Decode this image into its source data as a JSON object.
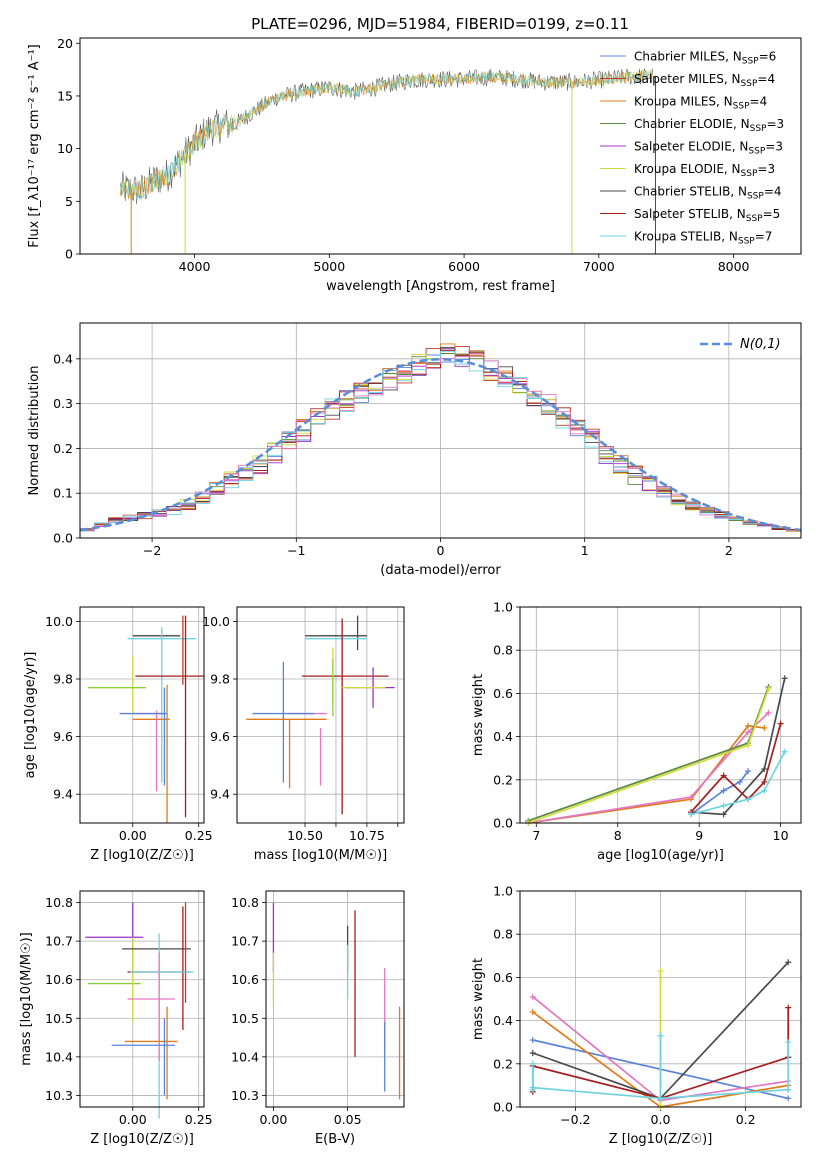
{
  "title": "PLATE=0296, MJD=51984, FIBERID=0199, z=0.11",
  "colors": {
    "chabrier_miles": "#5b84d8",
    "salpeter_miles": "#c0392b",
    "kroupa_miles": "#e07b1a",
    "chabrier_elodie": "#5a8a3c",
    "salpeter_elodie": "#9b30c9",
    "kroupa_elodie": "#d4d93a",
    "chabrier_stelib": "#4a4a4a",
    "salpeter_stelib": "#a51d1d",
    "kroupa_stelib": "#6fd3e0",
    "pink": "#e377c2",
    "green_light": "#8ccf3a",
    "grid": "#b0b0b0",
    "gauss": "#5b8ed8"
  },
  "chart_data": [
    {
      "id": "spectrum",
      "type": "line",
      "xlabel": "wavelength [Angstrom, rest frame]",
      "ylabel": "Flux [f_λ10⁻¹⁷ erg cm⁻² s⁻¹ A⁻¹]",
      "xlim": [
        3150,
        8500
      ],
      "ylim": [
        0,
        20.5
      ],
      "xticks": [
        4000,
        5000,
        6000,
        7000,
        8000
      ],
      "yticks": [
        0,
        5,
        10,
        15,
        20
      ],
      "continuum": {
        "x": [
          3450,
          3600,
          3700,
          3800,
          3900,
          4000,
          4100,
          4200,
          4300,
          4400,
          4600,
          4800,
          5000,
          5200,
          5400,
          5600,
          5800,
          6000,
          6200,
          6400,
          6600,
          6800,
          7000,
          7200,
          7400
        ],
        "y": [
          6.2,
          6.0,
          7.0,
          7.5,
          9.0,
          10.5,
          11.8,
          12.2,
          12.3,
          13.2,
          14.8,
          15.4,
          15.8,
          15.4,
          16.0,
          16.5,
          16.6,
          16.6,
          16.8,
          16.6,
          16.3,
          16.3,
          16.5,
          16.8,
          16.9
        ]
      },
      "legend": [
        {
          "label": "Chabrier MILES, N",
          "sub": "SSP",
          "val": "=6",
          "color": "chabrier_miles"
        },
        {
          "label": "Salpeter MILES, N",
          "sub": "SSP",
          "val": "=4",
          "color": "salpeter_miles"
        },
        {
          "label": "Kroupa MILES, N",
          "sub": "SSP",
          "val": "=4",
          "color": "kroupa_miles"
        },
        {
          "label": "Chabrier ELODIE, N",
          "sub": "SSP",
          "val": "=3",
          "color": "chabrier_elodie"
        },
        {
          "label": "Salpeter ELODIE, N",
          "sub": "SSP",
          "val": "=3",
          "color": "salpeter_elodie"
        },
        {
          "label": "Kroupa ELODIE, N",
          "sub": "SSP",
          "val": "=3",
          "color": "kroupa_elodie"
        },
        {
          "label": "Chabrier STELIB, N",
          "sub": "SSP",
          "val": "=4",
          "color": "chabrier_stelib"
        },
        {
          "label": "Salpeter STELIB, N",
          "sub": "SSP",
          "val": "=5",
          "color": "salpeter_stelib"
        },
        {
          "label": "Kroupa STELIB, N",
          "sub": "SSP",
          "val": "=7",
          "color": "kroupa_stelib"
        }
      ],
      "spikes": [
        {
          "x": 3530,
          "y": 0,
          "color": "kroupa_miles"
        },
        {
          "x": 3930,
          "y": 0,
          "color": "kroupa_elodie"
        },
        {
          "x": 6800,
          "y": 0,
          "color": "kroupa_elodie"
        },
        {
          "x": 7420,
          "y": 0,
          "color": "salpeter_stelib"
        }
      ]
    },
    {
      "id": "residual-histogram",
      "type": "histogram",
      "xlabel": "(data-model)/error",
      "ylabel": "Normed distribution",
      "xlim": [
        -2.5,
        2.5
      ],
      "ylim": [
        0,
        0.48
      ],
      "xticks": [
        -2,
        -1,
        0,
        1,
        2
      ],
      "yticks": [
        0.0,
        0.1,
        0.2,
        0.3,
        0.4
      ],
      "legend": "N(0,1)",
      "bin_width": 0.1,
      "bin_start": -2.5,
      "values": [
        0.018,
        0.03,
        0.04,
        0.045,
        0.05,
        0.055,
        0.062,
        0.075,
        0.09,
        0.11,
        0.13,
        0.145,
        0.165,
        0.19,
        0.215,
        0.24,
        0.265,
        0.29,
        0.305,
        0.325,
        0.34,
        0.355,
        0.37,
        0.385,
        0.4,
        0.41,
        0.405,
        0.395,
        0.375,
        0.36,
        0.34,
        0.32,
        0.3,
        0.27,
        0.245,
        0.22,
        0.19,
        0.165,
        0.14,
        0.12,
        0.1,
        0.085,
        0.07,
        0.06,
        0.052,
        0.045,
        0.035,
        0.028,
        0.022,
        0.017
      ]
    },
    {
      "id": "age-vs-Z",
      "type": "errorbar",
      "xlabel": "Z [log10(Z/Z☉)]",
      "ylabel": "age [log10(age/yr)]",
      "xlim": [
        -0.2,
        0.27
      ],
      "ylim": [
        9.3,
        10.05
      ],
      "xticks": [
        0.0,
        0.25
      ],
      "yticks": [
        9.4,
        9.6,
        9.8,
        10.0
      ],
      "points": [
        {
          "x": -0.06,
          "y": 9.77,
          "xerr": 0.11,
          "yerr": 0.0,
          "color": "kroupa_elodie"
        },
        {
          "x": 0.0,
          "y": 9.78,
          "xerr": 0.0,
          "yerr": 0.1,
          "color": "kroupa_elodie"
        },
        {
          "x": -0.06,
          "y": 9.77,
          "xerr": 0.11,
          "yerr": 0.0,
          "color": "green_light"
        },
        {
          "x": 0.09,
          "y": 9.95,
          "xerr": 0.09,
          "yerr": 0.0,
          "color": "chabrier_stelib"
        },
        {
          "x": 0.11,
          "y": 9.94,
          "xerr": 0.13,
          "yerr": 0.0,
          "color": "kroupa_stelib"
        },
        {
          "x": 0.11,
          "y": 9.71,
          "xerr": 0.0,
          "yerr": 0.27,
          "color": "kroupa_stelib"
        },
        {
          "x": 0.14,
          "y": 9.81,
          "xerr": 0.13,
          "yerr": 0.0,
          "color": "salpeter_stelib"
        },
        {
          "x": 0.2,
          "y": 9.67,
          "xerr": 0.0,
          "yerr": 0.35,
          "color": "salpeter_stelib"
        },
        {
          "x": 0.19,
          "y": 9.9,
          "xerr": 0.0,
          "yerr": 0.12,
          "color": "salpeter_miles"
        },
        {
          "x": 0.07,
          "y": 9.66,
          "xerr": 0.07,
          "yerr": 0.0,
          "color": "kroupa_miles"
        },
        {
          "x": 0.13,
          "y": 9.54,
          "xerr": 0.0,
          "yerr": 0.24,
          "color": "kroupa_miles"
        },
        {
          "x": 0.06,
          "y": 9.68,
          "xerr": 0.06,
          "yerr": 0.0,
          "color": "pink"
        },
        {
          "x": 0.09,
          "y": 9.55,
          "xerr": 0.0,
          "yerr": 0.14,
          "color": "pink"
        },
        {
          "x": 0.04,
          "y": 9.68,
          "xerr": 0.09,
          "yerr": 0.0,
          "color": "chabrier_miles"
        },
        {
          "x": 0.12,
          "y": 9.6,
          "xerr": 0.0,
          "yerr": 0.17,
          "color": "chabrier_miles"
        }
      ]
    },
    {
      "id": "age-vs-mass",
      "type": "errorbar",
      "xlabel": "mass [log10(M/M☉)]",
      "ylabel": "",
      "xlim": [
        10.28,
        10.82
      ],
      "ylim": [
        9.3,
        10.05
      ],
      "xticks": [
        10.5,
        10.6,
        10.7,
        10.8
      ],
      "xticklabels": [
        "10.50",
        "",
        "10.75",
        ""
      ],
      "yticks": [
        9.4,
        9.6,
        9.8,
        10.0
      ],
      "points": [
        {
          "x": 10.6,
          "y": 9.95,
          "xerr": 0.1,
          "yerr": 0.0,
          "color": "chabrier_stelib"
        },
        {
          "x": 10.67,
          "y": 9.96,
          "xerr": 0.0,
          "yerr": 0.06,
          "color": "chabrier_stelib"
        },
        {
          "x": 10.6,
          "y": 9.94,
          "xerr": 0.1,
          "yerr": 0.0,
          "color": "kroupa_stelib"
        },
        {
          "x": 10.63,
          "y": 9.81,
          "xerr": 0.14,
          "yerr": 0.0,
          "color": "salpeter_stelib"
        },
        {
          "x": 10.62,
          "y": 9.67,
          "xerr": 0.0,
          "yerr": 0.34,
          "color": "salpeter_stelib"
        },
        {
          "x": 10.71,
          "y": 9.77,
          "xerr": 0.08,
          "yerr": 0.0,
          "color": "salpeter_elodie"
        },
        {
          "x": 10.72,
          "y": 9.77,
          "xerr": 0.0,
          "yerr": 0.07,
          "color": "salpeter_elodie"
        },
        {
          "x": 10.69,
          "y": 9.77,
          "xerr": 0.07,
          "yerr": 0.0,
          "color": "kroupa_elodie"
        },
        {
          "x": 10.59,
          "y": 9.81,
          "xerr": 0.0,
          "yerr": 0.1,
          "color": "kroupa_elodie"
        },
        {
          "x": 10.59,
          "y": 9.77,
          "xerr": 0.0,
          "yerr": 0.1,
          "color": "green_light"
        },
        {
          "x": 10.44,
          "y": 9.66,
          "xerr": 0.13,
          "yerr": 0.0,
          "color": "kroupa_miles"
        },
        {
          "x": 10.45,
          "y": 9.54,
          "xerr": 0.0,
          "yerr": 0.12,
          "color": "kroupa_miles"
        },
        {
          "x": 10.51,
          "y": 9.68,
          "xerr": 0.06,
          "yerr": 0.0,
          "color": "pink"
        },
        {
          "x": 10.55,
          "y": 9.53,
          "xerr": 0.0,
          "yerr": 0.1,
          "color": "pink"
        },
        {
          "x": 10.43,
          "y": 9.68,
          "xerr": 0.1,
          "yerr": 0.0,
          "color": "chabrier_miles"
        },
        {
          "x": 10.43,
          "y": 9.65,
          "xerr": 0.0,
          "yerr": 0.21,
          "color": "chabrier_miles"
        }
      ]
    },
    {
      "id": "mass-weight-vs-age",
      "type": "line",
      "xlabel": "age [log10(age/yr)]",
      "ylabel": "mass weight",
      "xlim": [
        6.8,
        10.25
      ],
      "ylim": [
        0,
        1.0
      ],
      "xticks": [
        7,
        8,
        9,
        10
      ],
      "yticks": [
        0.0,
        0.2,
        0.4,
        0.6,
        0.8,
        1.0
      ],
      "series": [
        {
          "color": "chabrier_miles",
          "x": [
            8.9,
            9.3,
            9.5,
            9.6
          ],
          "y": [
            0.04,
            0.15,
            0.19,
            0.24
          ]
        },
        {
          "color": "kroupa_miles",
          "x": [
            6.9,
            8.9,
            9.6,
            9.8
          ],
          "y": [
            0.0,
            0.11,
            0.45,
            0.44
          ]
        },
        {
          "color": "pink",
          "x": [
            6.9,
            8.9,
            9.6,
            9.85
          ],
          "y": [
            0.0,
            0.12,
            0.42,
            0.51
          ]
        },
        {
          "color": "chabrier_elodie",
          "x": [
            6.9,
            9.6,
            9.85
          ],
          "y": [
            0.01,
            0.37,
            0.63
          ]
        },
        {
          "color": "kroupa_elodie",
          "x": [
            6.9,
            9.6,
            9.85
          ],
          "y": [
            0.0,
            0.36,
            0.62
          ]
        },
        {
          "color": "chabrier_stelib",
          "x": [
            8.9,
            9.3,
            9.8,
            10.05
          ],
          "y": [
            0.05,
            0.04,
            0.25,
            0.67
          ]
        },
        {
          "color": "salpeter_stelib",
          "x": [
            8.9,
            9.3,
            9.6,
            9.8,
            10.0
          ],
          "y": [
            0.05,
            0.22,
            0.11,
            0.19,
            0.46
          ]
        },
        {
          "color": "kroupa_stelib",
          "x": [
            8.9,
            9.3,
            9.6,
            9.8,
            10.05
          ],
          "y": [
            0.04,
            0.08,
            0.11,
            0.15,
            0.33
          ]
        }
      ]
    },
    {
      "id": "mass-vs-Z",
      "type": "errorbar",
      "xlabel": "Z [log10(Z/Z☉)]",
      "ylabel": "mass [log10(M/M☉)]",
      "xlim": [
        -0.2,
        0.27
      ],
      "ylim": [
        10.27,
        10.83
      ],
      "xticks": [
        0.0,
        0.25
      ],
      "yticks": [
        10.3,
        10.4,
        10.5,
        10.6,
        10.7,
        10.8
      ],
      "points": [
        {
          "x": -0.07,
          "y": 10.71,
          "xerr": 0.11,
          "yerr": 0.0,
          "color": "salpeter_elodie"
        },
        {
          "x": 0.0,
          "y": 10.71,
          "xerr": 0.0,
          "yerr": 0.09,
          "color": "salpeter_elodie"
        },
        {
          "x": -0.07,
          "y": 10.59,
          "xerr": 0.1,
          "yerr": 0.0,
          "color": "green_light"
        },
        {
          "x": 0.0,
          "y": 10.6,
          "xerr": 0.0,
          "yerr": 0.11,
          "color": "kroupa_elodie"
        },
        {
          "x": 0.09,
          "y": 10.68,
          "xerr": 0.13,
          "yerr": 0.0,
          "color": "chabrier_stelib"
        },
        {
          "x": 0.1,
          "y": 10.62,
          "xerr": 0.12,
          "yerr": 0.0,
          "color": "salpeter_stelib"
        },
        {
          "x": 0.19,
          "y": 10.63,
          "xerr": 0.0,
          "yerr": 0.16,
          "color": "salpeter_stelib"
        },
        {
          "x": 0.2,
          "y": 10.67,
          "xerr": 0.0,
          "yerr": 0.13,
          "color": "salpeter_miles"
        },
        {
          "x": 0.11,
          "y": 10.62,
          "xerr": 0.12,
          "yerr": 0.0,
          "color": "kroupa_stelib"
        },
        {
          "x": 0.1,
          "y": 10.48,
          "xerr": 0.0,
          "yerr": 0.24,
          "color": "kroupa_stelib"
        },
        {
          "x": 0.07,
          "y": 10.55,
          "xerr": 0.09,
          "yerr": 0.0,
          "color": "pink"
        },
        {
          "x": 0.1,
          "y": 10.53,
          "xerr": 0.0,
          "yerr": 0.14,
          "color": "pink"
        },
        {
          "x": 0.07,
          "y": 10.44,
          "xerr": 0.1,
          "yerr": 0.0,
          "color": "kroupa_miles"
        },
        {
          "x": 0.13,
          "y": 10.41,
          "xerr": 0.0,
          "yerr": 0.12,
          "color": "kroupa_miles"
        },
        {
          "x": 0.04,
          "y": 10.43,
          "xerr": 0.12,
          "yerr": 0.0,
          "color": "chabrier_miles"
        },
        {
          "x": 0.12,
          "y": 10.4,
          "xerr": 0.0,
          "yerr": 0.1,
          "color": "chabrier_miles"
        }
      ]
    },
    {
      "id": "mass-vs-EBV",
      "type": "errorbar",
      "xlabel": "E(B-V)",
      "ylabel": "",
      "xlim": [
        -0.005,
        0.088
      ],
      "ylim": [
        10.27,
        10.83
      ],
      "xticks": [
        0.0,
        0.05
      ],
      "yticks": [
        10.3,
        10.4,
        10.5,
        10.6,
        10.7,
        10.8
      ],
      "points": [
        {
          "x": 0.0,
          "y": 10.71,
          "xerr": 0.0,
          "yerr": 0.09,
          "color": "salpeter_elodie"
        },
        {
          "x": 0.0,
          "y": 10.6,
          "xerr": 0.0,
          "yerr": 0.07,
          "color": "kroupa_elodie"
        },
        {
          "x": 0.05,
          "y": 10.68,
          "xerr": 0.0,
          "yerr": 0.06,
          "color": "chabrier_stelib"
        },
        {
          "x": 0.05,
          "y": 10.62,
          "xerr": 0.0,
          "yerr": 0.07,
          "color": "kroupa_stelib"
        },
        {
          "x": 0.055,
          "y": 10.59,
          "xerr": 0.0,
          "yerr": 0.19,
          "color": "salpeter_stelib"
        },
        {
          "x": 0.075,
          "y": 10.52,
          "xerr": 0.0,
          "yerr": 0.11,
          "color": "pink"
        },
        {
          "x": 0.075,
          "y": 10.4,
          "xerr": 0.0,
          "yerr": 0.09,
          "color": "chabrier_miles"
        },
        {
          "x": 0.085,
          "y": 10.41,
          "xerr": 0.0,
          "yerr": 0.12,
          "color": "kroupa_miles"
        }
      ]
    },
    {
      "id": "mass-weight-vs-Z",
      "type": "line",
      "xlabel": "Z [log10(Z/Z☉)]",
      "ylabel": "mass weight",
      "xlim": [
        -0.33,
        0.33
      ],
      "ylim": [
        0,
        1.0
      ],
      "xticks": [
        -0.2,
        0.0,
        0.2
      ],
      "yticks": [
        0.0,
        0.2,
        0.4,
        0.6,
        0.8,
        1.0
      ],
      "series": [
        {
          "color": "chabrier_miles",
          "x": [
            -0.3,
            0.3
          ],
          "y": [
            0.31,
            0.04
          ]
        },
        {
          "color": "kroupa_miles",
          "x": [
            -0.3,
            0.0,
            0.3
          ],
          "y": [
            0.44,
            0.0,
            0.1
          ]
        },
        {
          "color": "pink",
          "x": [
            -0.3,
            0.0,
            0.3
          ],
          "y": [
            0.51,
            0.03,
            0.12
          ]
        },
        {
          "color": "chabrier_stelib",
          "x": [
            -0.3,
            0.0,
            0.3
          ],
          "y": [
            0.25,
            0.04,
            0.67
          ]
        },
        {
          "color": "salpeter_stelib",
          "x": [
            -0.3,
            0.0,
            0.3
          ],
          "y": [
            0.19,
            0.04,
            0.23
          ]
        },
        {
          "color": "kroupa_stelib",
          "x": [
            -0.3,
            0.0,
            0.3
          ],
          "y": [
            0.09,
            0.04,
            0.08
          ]
        },
        {
          "color": "kroupa_elodie",
          "x": [
            0.0,
            0.0
          ],
          "y": [
            0.0,
            0.63
          ]
        },
        {
          "color": "kroupa_stelib",
          "x": [
            0.0,
            0.0
          ],
          "y": [
            0.04,
            0.33
          ]
        },
        {
          "color": "salpeter_stelib",
          "x": [
            0.3,
            0.3
          ],
          "y": [
            0.23,
            0.46
          ]
        },
        {
          "color": "kroupa_stelib",
          "x": [
            0.3,
            0.3
          ],
          "y": [
            0.08,
            0.3
          ]
        },
        {
          "color": "salpeter_stelib",
          "x": [
            -0.3,
            -0.3
          ],
          "y": [
            0.07,
            0.19
          ]
        },
        {
          "color": "kroupa_stelib",
          "x": [
            -0.3,
            -0.3
          ],
          "y": [
            0.08,
            0.2
          ]
        }
      ]
    }
  ]
}
